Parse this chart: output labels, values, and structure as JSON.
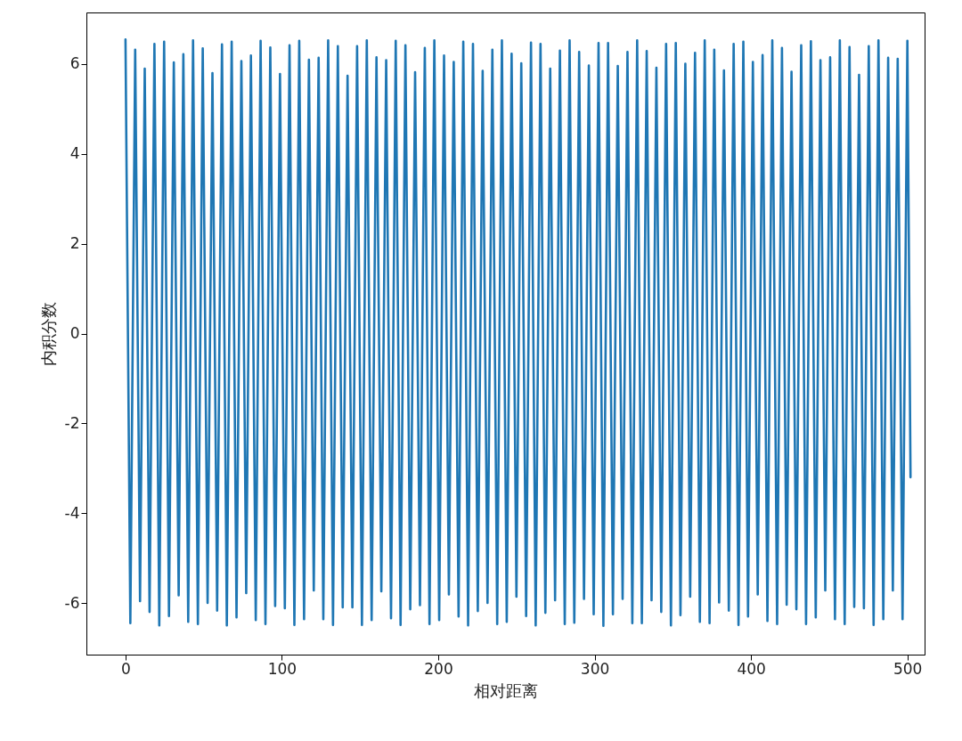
{
  "chart_data": {
    "type": "line",
    "xlabel": "相对距离",
    "ylabel": "内积分数",
    "xlim": [
      -25,
      511
    ],
    "ylim": [
      -7.15,
      7.15
    ],
    "xticks": [
      0,
      100,
      200,
      300,
      400,
      500
    ],
    "yticks": [
      -6,
      -4,
      -2,
      0,
      2,
      4,
      6
    ],
    "grid": false,
    "marker": "none",
    "line_style": "solid",
    "x": [
      0,
      3.1,
      6.2,
      9.3,
      12.3,
      15.4,
      18.5,
      21.6,
      24.7,
      27.8,
      30.9,
      34.0,
      37.0,
      40.1,
      43.2,
      46.3,
      49.4,
      52.5,
      55.6,
      58.6,
      61.7,
      64.8,
      67.9,
      71.0,
      74.1,
      77.2,
      80.2,
      83.3,
      86.4,
      89.5,
      92.6,
      95.7,
      98.8,
      101.9,
      104.9,
      108.0,
      111.1,
      114.2,
      117.3,
      120.4,
      123.5,
      126.5,
      129.6,
      132.7,
      135.8,
      138.9,
      142.0,
      145.1,
      148.1,
      151.2,
      154.3,
      157.4,
      160.5,
      163.6,
      166.7,
      169.8,
      172.8,
      175.9,
      179.0,
      182.1,
      185.2,
      188.3,
      191.4,
      194.4,
      197.5,
      200.6,
      203.7,
      206.8,
      209.9,
      213.0,
      216.0,
      219.1,
      222.2,
      225.3,
      228.4,
      231.5,
      234.6,
      237.7,
      240.7,
      243.8,
      246.9,
      250.0,
      253.1,
      256.2,
      259.3,
      262.3,
      265.4,
      268.5,
      271.6,
      274.7,
      277.8,
      280.9,
      284.0,
      287.0,
      290.1,
      293.2,
      296.3,
      299.4,
      302.5,
      305.6,
      308.6,
      311.7,
      314.8,
      317.9,
      321.0,
      324.1,
      327.2,
      330.2,
      333.3,
      336.4,
      339.5,
      342.6,
      345.7,
      348.8,
      351.9,
      354.9,
      358.0,
      361.1,
      364.2,
      367.3,
      370.4,
      373.5,
      376.5,
      379.6,
      382.7,
      385.8,
      388.9,
      392.0,
      395.1,
      398.1,
      401.2,
      404.3,
      407.4,
      410.5,
      413.6,
      416.7,
      419.8,
      422.8,
      425.9,
      429.0,
      432.1,
      435.2,
      438.3,
      441.4,
      444.4,
      447.5,
      450.6,
      453.7,
      456.8,
      459.9,
      463.0,
      466.0,
      469.1,
      472.2,
      475.3,
      478.4,
      481.5,
      484.6,
      487.7,
      490.7,
      493.8,
      496.9,
      500.0,
      502
    ],
    "series": [
      {
        "color": "#1f77b4",
        "values": [
          6.55,
          -6.45,
          6.32,
          -5.96,
          5.9,
          -6.2,
          6.45,
          -6.5,
          6.5,
          -6.29,
          6.04,
          -5.83,
          6.22,
          -6.42,
          6.53,
          -6.47,
          6.35,
          -6.0,
          5.8,
          -6.17,
          6.44,
          -6.5,
          6.5,
          -6.32,
          6.07,
          -5.78,
          6.19,
          -6.38,
          6.52,
          -6.47,
          6.37,
          -6.07,
          5.78,
          -6.12,
          6.42,
          -6.49,
          6.52,
          -6.36,
          6.1,
          -5.72,
          6.14,
          -6.36,
          6.53,
          -6.49,
          6.4,
          -6.1,
          5.74,
          -6.1,
          6.4,
          -6.49,
          6.53,
          -6.38,
          6.15,
          -5.74,
          6.09,
          -6.34,
          6.52,
          -6.49,
          6.42,
          -6.14,
          5.82,
          -6.05,
          6.36,
          -6.47,
          6.53,
          -6.38,
          6.19,
          -5.81,
          6.05,
          -6.3,
          6.5,
          -6.5,
          6.45,
          -6.18,
          5.85,
          -6.0,
          6.32,
          -6.47,
          6.53,
          -6.42,
          6.23,
          -5.86,
          6.02,
          -6.29,
          6.48,
          -6.5,
          6.45,
          -6.22,
          5.9,
          -5.94,
          6.3,
          -6.47,
          6.53,
          -6.44,
          6.27,
          -5.91,
          5.97,
          -6.25,
          6.47,
          -6.51,
          6.47,
          -6.25,
          5.96,
          -5.91,
          6.27,
          -6.45,
          6.53,
          -6.45,
          6.29,
          -5.94,
          5.92,
          -6.2,
          6.45,
          -6.5,
          6.47,
          -6.27,
          6.01,
          -5.86,
          6.25,
          -6.42,
          6.53,
          -6.45,
          6.32,
          -5.99,
          5.86,
          -6.17,
          6.45,
          -6.49,
          6.5,
          -6.3,
          6.05,
          -5.81,
          6.2,
          -6.4,
          6.53,
          -6.47,
          6.36,
          -6.04,
          5.83,
          -6.14,
          6.42,
          -6.47,
          6.51,
          -6.32,
          6.09,
          -5.72,
          6.15,
          -6.36,
          6.53,
          -6.47,
          6.38,
          -6.09,
          5.76,
          -6.12,
          6.4,
          -6.49,
          6.53,
          -6.36,
          6.14,
          -5.72,
          6.12,
          -6.36,
          6.52,
          -3.2
        ]
      }
    ]
  }
}
